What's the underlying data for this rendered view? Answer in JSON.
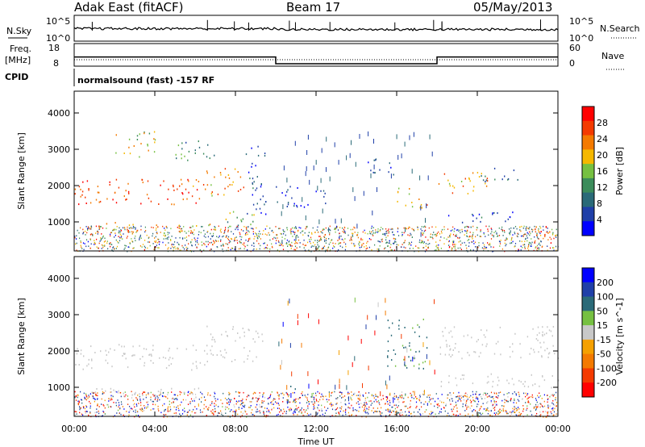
{
  "header": {
    "site": "Adak East (fitACF)",
    "beam": "Beam 17",
    "date": "05/May/2013"
  },
  "top_panels": {
    "nsky_label": "N.Sky",
    "nsearch_label": "N.Search",
    "nsky_ticks": [
      "10^5",
      "10^0"
    ],
    "freq_label_1": "Freq.",
    "freq_label_2": "[MHz]",
    "freq_ticks": [
      "18",
      "8"
    ],
    "nave_label": "Nave",
    "nave_ticks": [
      "60",
      "0"
    ],
    "cpid_label": "CPID",
    "cpid_text": "normalsound (fast) -157 RF"
  },
  "colors": {
    "power_scale": [
      "#0000ff",
      "#1f3fa8",
      "#2a6a78",
      "#3b8c5a",
      "#76c041",
      "#f5b800",
      "#f47a00",
      "#f43a00",
      "#ff0000"
    ],
    "velocity_scale": [
      "#0000ff",
      "#1f3fa8",
      "#2a6a78",
      "#76c041",
      "#c8c8c8",
      "#f5a000",
      "#f47a00",
      "#f43a00",
      "#ff0000"
    ],
    "ground_scatter": "#c8c8c8"
  },
  "chart_data": [
    {
      "type": "heatmap",
      "title": "Power",
      "xlabel": "Time UT",
      "ylabel": "Slant Range [km]",
      "x_ticks": [
        "00:00",
        "04:00",
        "08:00",
        "12:00",
        "16:00",
        "20:00",
        "00:00"
      ],
      "y_ticks": [
        "1000",
        "2000",
        "3000",
        "4000"
      ],
      "ylim": [
        200,
        4600
      ],
      "colorbar_label": "Power [dB]",
      "colorbar_ticks": [
        "28",
        "24",
        "20",
        "16",
        "12",
        "8",
        "4"
      ],
      "colorbar_range": [
        0,
        32
      ],
      "regions": [
        {
          "t0": 0.0,
          "t1": 6.5,
          "r0": 1500,
          "r1": 2200,
          "power": 26
        },
        {
          "t0": 6.5,
          "t1": 8.5,
          "r0": 1700,
          "r1": 2500,
          "power": 22
        },
        {
          "t0": 8.5,
          "t1": 9.5,
          "r0": 1000,
          "r1": 3100,
          "power": 6
        },
        {
          "t0": 1.0,
          "t1": 3.5,
          "r0": 700,
          "r1": 1000,
          "power": 22
        },
        {
          "t0": 4.0,
          "t1": 7.0,
          "r0": 700,
          "r1": 1000,
          "power": 20
        },
        {
          "t0": 2.0,
          "t1": 4.0,
          "r0": 2800,
          "r1": 3500,
          "power": 18
        },
        {
          "t0": 5.0,
          "t1": 7.0,
          "r0": 2700,
          "r1": 3300,
          "power": 12
        },
        {
          "t0": 7.5,
          "t1": 9.0,
          "r0": 800,
          "r1": 1300,
          "power": 14
        },
        {
          "t0": 10.0,
          "t1": 12.5,
          "r0": 1400,
          "r1": 2000,
          "power": 5
        },
        {
          "t0": 14.5,
          "t1": 16.0,
          "r0": 2300,
          "r1": 2800,
          "power": 6
        },
        {
          "t0": 16.0,
          "t1": 17.5,
          "r0": 1400,
          "r1": 2000,
          "power": 20
        },
        {
          "t0": 18.0,
          "t1": 20.5,
          "r0": 1800,
          "r1": 2400,
          "power": 22
        },
        {
          "t0": 20.0,
          "t1": 22.0,
          "r0": 2100,
          "r1": 2500,
          "power": 8
        },
        {
          "t0": 18.5,
          "t1": 22.0,
          "r0": 1000,
          "r1": 1300,
          "power": 6
        },
        {
          "t0": 22.0,
          "t1": 24.0,
          "r0": 600,
          "r1": 900,
          "power": 26
        }
      ]
    },
    {
      "type": "heatmap",
      "title": "Velocity",
      "xlabel": "Time UT",
      "ylabel": "Slant Range [km]",
      "x_ticks": [
        "00:00",
        "04:00",
        "08:00",
        "12:00",
        "16:00",
        "20:00",
        "00:00"
      ],
      "y_ticks": [
        "1000",
        "2000",
        "3000",
        "4000"
      ],
      "ylim": [
        200,
        4600
      ],
      "colorbar_label": "Velocity [m s^-1]",
      "colorbar_ticks": [
        "200",
        "100",
        "50",
        "15",
        "-15",
        "-50",
        "-100",
        "-200"
      ],
      "colorbar_range": [
        -250,
        250
      ],
      "regions": [
        {
          "t0": 0.0,
          "t1": 6.5,
          "r0": 1500,
          "r1": 2200,
          "velocity": 0
        },
        {
          "t0": 6.5,
          "t1": 9.5,
          "r0": 1700,
          "r1": 2700,
          "velocity": 0
        },
        {
          "t0": 1.0,
          "t1": 7.0,
          "r0": 700,
          "r1": 1000,
          "velocity": 0
        },
        {
          "t0": 10.5,
          "t1": 11.0,
          "r0": 500,
          "r1": 1100,
          "velocity": 60
        },
        {
          "t0": 15.5,
          "t1": 17.5,
          "r0": 1500,
          "r1": 2900,
          "velocity": 40
        },
        {
          "t0": 18.0,
          "t1": 24.0,
          "r0": 1800,
          "r1": 2700,
          "velocity": 0
        },
        {
          "t0": 18.0,
          "t1": 24.0,
          "r0": 1000,
          "r1": 1400,
          "velocity": 0
        },
        {
          "t0": 20.0,
          "t1": 24.0,
          "r0": 200,
          "r1": 500,
          "velocity": -80
        }
      ]
    }
  ],
  "nsky_series": {
    "name": "N.Sky",
    "level": 4.2
  },
  "freq_series": [
    {
      "t0": 0,
      "t1": 10,
      "mhz": 13.5
    },
    {
      "t0": 10,
      "t1": 18,
      "mhz": 10.5
    },
    {
      "t0": 18,
      "t1": 24,
      "mhz": 13.5
    }
  ]
}
